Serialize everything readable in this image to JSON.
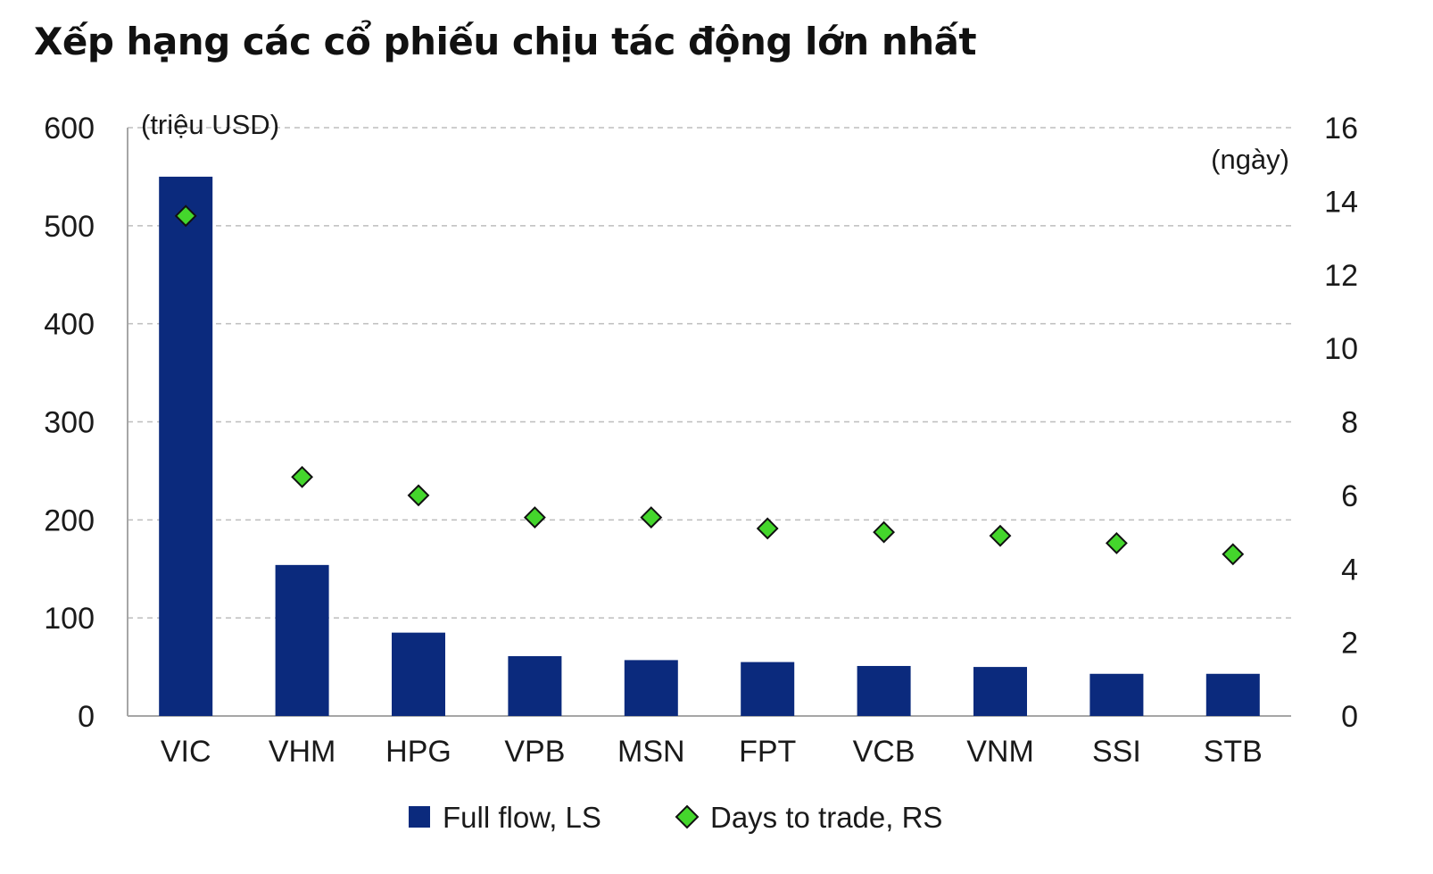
{
  "title": "Xếp hạng các cổ phiếu chịu tác động lớn nhất",
  "chart_data": {
    "type": "bar",
    "categories": [
      "VIC",
      "VHM",
      "HPG",
      "VPB",
      "MSN",
      "FPT",
      "VCB",
      "VNM",
      "SSI",
      "STB"
    ],
    "series": [
      {
        "name": "Full flow, LS",
        "type": "bar",
        "axis": "left",
        "color": "#0b2a7d",
        "values": [
          550,
          154,
          85,
          61,
          57,
          55,
          51,
          50,
          43,
          43
        ]
      },
      {
        "name": "Days to trade, RS",
        "type": "scatter",
        "marker": "diamond",
        "axis": "right",
        "color": "#44d62c",
        "values": [
          13.6,
          6.5,
          6.0,
          5.4,
          5.4,
          5.1,
          5.0,
          4.9,
          4.7,
          4.4
        ]
      }
    ],
    "y_left": {
      "label": "(triệu USD)",
      "min": 0,
      "max": 600,
      "ticks": [
        "0",
        "100",
        "200",
        "300",
        "400",
        "500",
        "600"
      ]
    },
    "y_right": {
      "label": "(ngày)",
      "min": 0,
      "max": 16,
      "ticks": [
        "0",
        "2",
        "4",
        "6",
        "8",
        "10",
        "12",
        "14",
        "16"
      ]
    },
    "grid": true,
    "legend_position": "bottom-center"
  }
}
